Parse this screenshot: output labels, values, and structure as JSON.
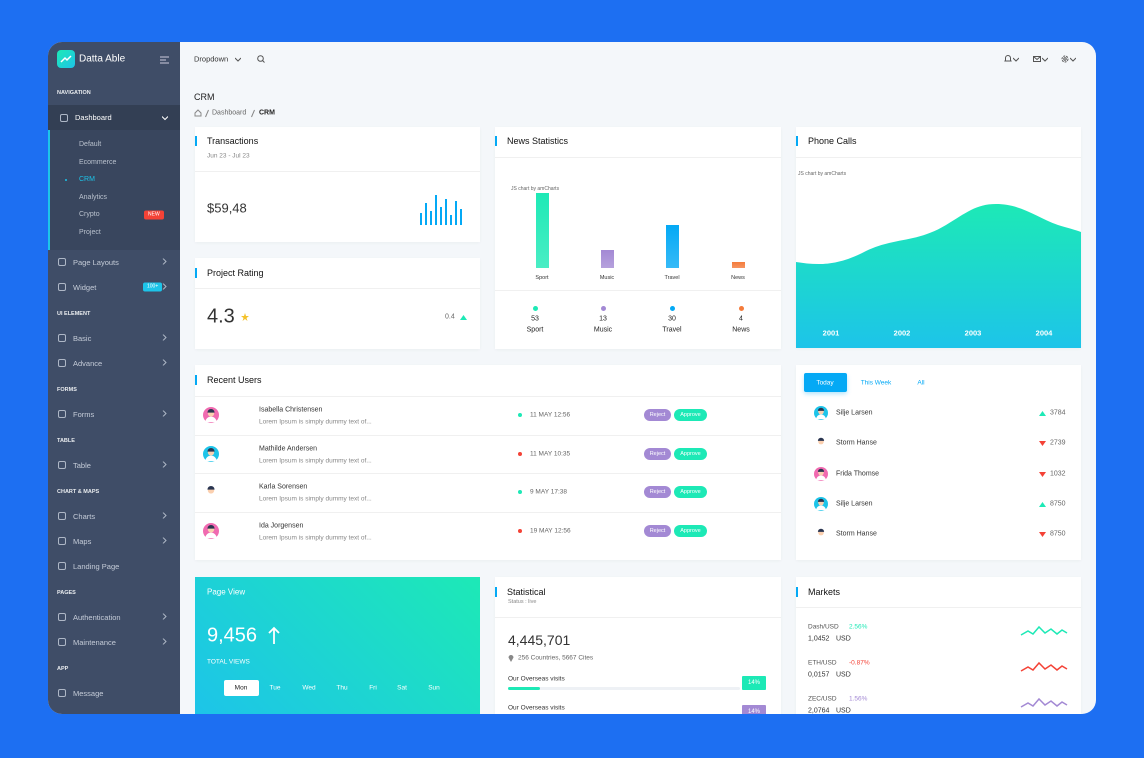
{
  "sidebar": {
    "brand": "Datta Able",
    "sections": [
      {
        "caption": "NAVIGATION",
        "items": [
          {
            "label": "Dashboard",
            "open": true,
            "expandable": true,
            "submenu": [
              {
                "label": "Default"
              },
              {
                "label": "Ecommerce"
              },
              {
                "label": "CRM",
                "active": true
              },
              {
                "label": "Analytics"
              },
              {
                "label": "Crypto",
                "badge": "NEW"
              },
              {
                "label": "Project"
              }
            ]
          },
          {
            "label": "Page Layouts",
            "expandable": true
          },
          {
            "label": "Widget",
            "badge": "100+",
            "expandable": true
          }
        ]
      },
      {
        "caption": "UI ELEMENT",
        "items": [
          {
            "label": "Basic",
            "expandable": true
          },
          {
            "label": "Advance",
            "expandable": true
          }
        ]
      },
      {
        "caption": "FORMS",
        "items": [
          {
            "label": "Forms",
            "expandable": true
          }
        ]
      },
      {
        "caption": "TABLE",
        "items": [
          {
            "label": "Table",
            "expandable": true
          }
        ]
      },
      {
        "caption": "CHART & MAPS",
        "items": [
          {
            "label": "Charts",
            "expandable": true
          },
          {
            "label": "Maps",
            "expandable": true
          },
          {
            "label": "Landing Page"
          }
        ]
      },
      {
        "caption": "PAGES",
        "items": [
          {
            "label": "Authentication",
            "expandable": true
          },
          {
            "label": "Maintenance",
            "expandable": true
          }
        ]
      },
      {
        "caption": "APP",
        "items": [
          {
            "label": "Message"
          }
        ]
      }
    ]
  },
  "topbar": {
    "dropdown": "Dropdown"
  },
  "page": {
    "title": "CRM",
    "breadcrumb": [
      "Dashboard",
      "CRM"
    ]
  },
  "transactions": {
    "title": "Transactions",
    "period": "Jun 23 - Jul 23",
    "amount": "$59,48"
  },
  "project_rating": {
    "title": "Project Rating",
    "rating": 4.3,
    "change": 0.4
  },
  "news_statistics": {
    "title": "News Statistics",
    "credit": "JS chart by amCharts",
    "chart_data": {
      "type": "bar",
      "categories": [
        "Sport",
        "Music",
        "Travel",
        "News"
      ],
      "values": [
        53,
        13,
        30,
        4
      ],
      "colors": [
        "#1de9b6",
        "#a389d4",
        "#04a9f5",
        "#f47b3b"
      ],
      "ylim": [
        0,
        55
      ]
    }
  },
  "phone_calls": {
    "title": "Phone Calls",
    "credit": "JS chart by amCharts",
    "years": [
      "2001",
      "2002",
      "2003",
      "2004"
    ]
  },
  "recent_users": {
    "title": "Recent Users",
    "actions": [
      "Reject",
      "Approve"
    ],
    "rows": [
      {
        "name": "Isabella Christensen",
        "text": "Lorem Ipsum is simply dummy text of...",
        "date": "11 MAY 12:56",
        "dot_color": "#1de9b6"
      },
      {
        "name": "Mathilde Andersen",
        "text": "Lorem Ipsum is simply dummy text of...",
        "date": "11 MAY 10:35",
        "dot_color": "#f44236"
      },
      {
        "name": "Karla Sorensen",
        "text": "Lorem Ipsum is simply dummy text of...",
        "date": "9 MAY 17:38",
        "dot_color": "#1de9b6"
      },
      {
        "name": "Ida Jorgensen",
        "text": "Lorem Ipsum is simply dummy text of...",
        "date": "19 MAY 12:56",
        "dot_color": "#f44236"
      }
    ]
  },
  "users_tabs": {
    "tabs": [
      "Today",
      "This Week",
      "All"
    ],
    "active": 0,
    "rows": [
      {
        "name": "Silje Larsen",
        "value": 3784,
        "trend": "up"
      },
      {
        "name": "Storm Hanse",
        "value": 2739,
        "trend": "down"
      },
      {
        "name": "Frida Thomse",
        "value": 1032,
        "trend": "down"
      },
      {
        "name": "Silje Larsen",
        "value": 8750,
        "trend": "up"
      },
      {
        "name": "Storm Hanse",
        "value": 8750,
        "trend": "down"
      }
    ]
  },
  "page_view": {
    "title": "Page View",
    "value": "9,456",
    "label": "TOTAL VIEWS",
    "days": [
      "Mon",
      "Tue",
      "Wed",
      "Thu",
      "Fri",
      "Sat",
      "Sun"
    ],
    "active_day": 0
  },
  "statistical": {
    "title": "Statistical",
    "status": "Status : live",
    "value": "4,445,701",
    "location": "256 Countries, 5667 Cites",
    "progress": [
      {
        "label": "Our Overseas visits",
        "value": 14,
        "value_label": "14%",
        "color": "#1de9b6"
      },
      {
        "label": "Our Overseas visits",
        "value": 14,
        "value_label": "14%",
        "color": "#a389d4"
      }
    ]
  },
  "markets": {
    "title": "Markets",
    "rows": [
      {
        "pair": "Dash/USD",
        "change": "2.56%",
        "price": "1,0452",
        "unit": "USD",
        "color": "#1de9b6"
      },
      {
        "pair": "ETH/USD",
        "change": "-0.87%",
        "price": "0,0157",
        "unit": "USD",
        "color": "#f44236"
      },
      {
        "pair": "ZEC/USD",
        "change": "1.56%",
        "price": "2,0764",
        "unit": "USD",
        "color": "#a389d4"
      }
    ]
  }
}
